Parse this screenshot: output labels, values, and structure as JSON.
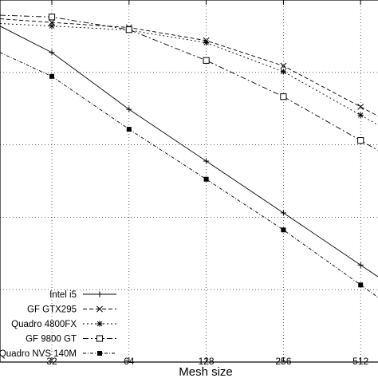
{
  "chart_data": {
    "type": "line",
    "xlabel": "Mesh size",
    "ylabel": "",
    "x_scale": "log2",
    "x": [
      32,
      64,
      128,
      256,
      512
    ],
    "xticks": [
      "32",
      "64",
      "128",
      "256",
      "512"
    ],
    "ylim": [
      0,
      1
    ],
    "grid": true,
    "legend_position": "bottom-left",
    "series": [
      {
        "name": "Intel i5",
        "marker": "plus",
        "dash": "none",
        "values": [
          0.855,
          0.698,
          0.555,
          0.412,
          0.268
        ]
      },
      {
        "name": "GF GTX295",
        "marker": "x",
        "dash": "5,3",
        "values": [
          0.938,
          0.924,
          0.888,
          0.818,
          0.705
        ]
      },
      {
        "name": "Quadro 4800FX",
        "marker": "star",
        "dash": "2,3",
        "values": [
          0.928,
          0.917,
          0.882,
          0.802,
          0.682
        ]
      },
      {
        "name": "GF 9800 GT",
        "marker": "square-open",
        "dash": "7,3,2,3",
        "values": [
          0.953,
          0.918,
          0.833,
          0.733,
          0.612
        ]
      },
      {
        "name": "Quadro NVS 140M",
        "marker": "square-filled",
        "dash": "4,2,1,2",
        "values": [
          0.789,
          0.643,
          0.505,
          0.365,
          0.213
        ]
      }
    ],
    "extrapolate_left_values": [
      0.928,
      0.948,
      0.935,
      0.958,
      0.855
    ]
  }
}
